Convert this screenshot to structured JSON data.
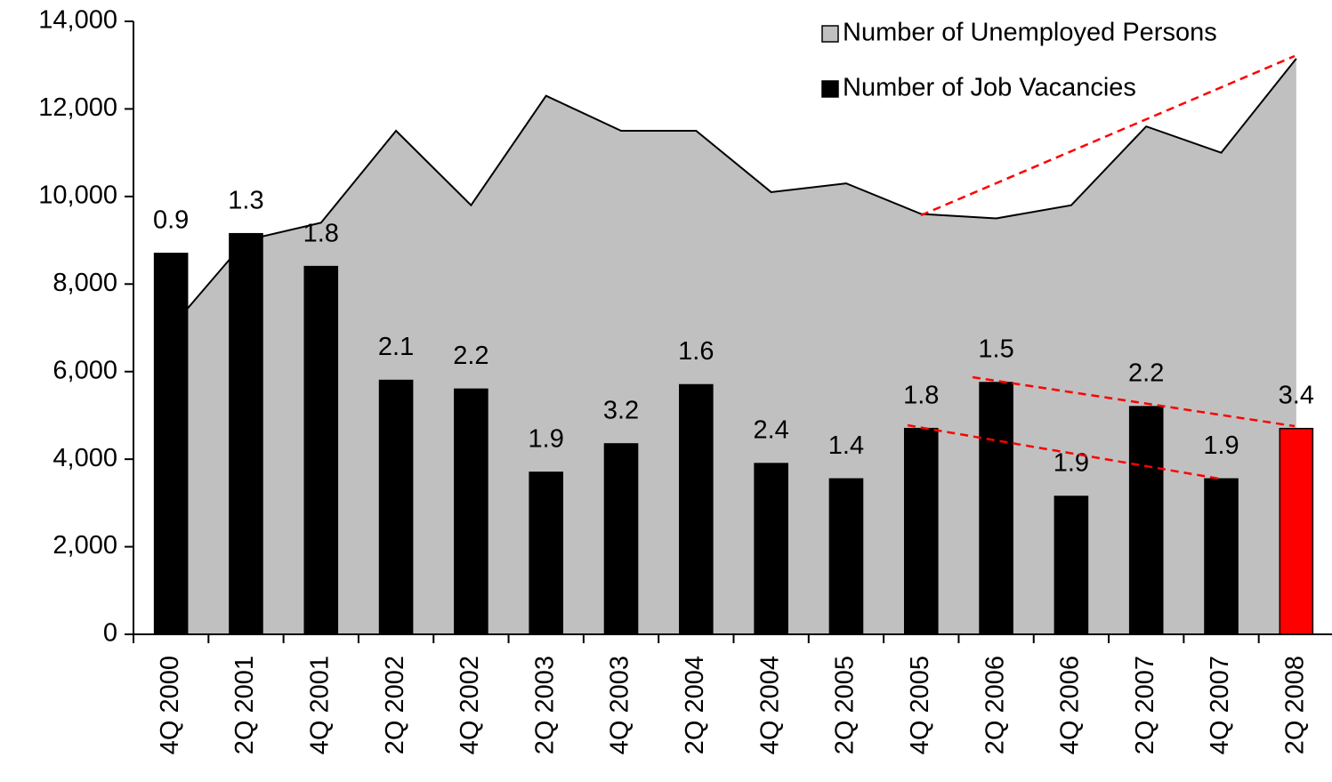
{
  "chart_data": {
    "type": "bar_area",
    "categories": [
      "4Q 2000",
      "2Q 2001",
      "4Q 2001",
      "2Q 2002",
      "4Q 2002",
      "2Q 2003",
      "4Q 2003",
      "2Q 2004",
      "4Q 2004",
      "2Q 2005",
      "4Q 2005",
      "2Q 2006",
      "4Q 2006",
      "2Q 2007",
      "4Q 2007",
      "2Q 2008"
    ],
    "series": [
      {
        "name": "Number of Unemployed Persons",
        "type": "area",
        "color": "#c0c0c0",
        "values": [
          7000,
          9000,
          9400,
          11500,
          9800,
          12300,
          11500,
          11500,
          10100,
          10300,
          9600,
          9500,
          9800,
          11600,
          11000,
          13150
        ]
      },
      {
        "name": "Number of Job Vacancies",
        "type": "bar",
        "color": "#000000",
        "colors": [
          "#000000",
          "#000000",
          "#000000",
          "#000000",
          "#000000",
          "#000000",
          "#000000",
          "#000000",
          "#000000",
          "#000000",
          "#000000",
          "#000000",
          "#000000",
          "#000000",
          "#000000",
          "#ff0000"
        ],
        "values": [
          8700,
          9150,
          8400,
          5800,
          5600,
          3700,
          4350,
          5700,
          3900,
          3550,
          4700,
          5750,
          3150,
          5200,
          3550,
          4700
        ]
      }
    ],
    "annotations": [
      "0.9",
      "1.3",
      "1.8",
      "2.1",
      "2.2",
      "1.9",
      "3.2",
      "1.6",
      "2.4",
      "1.4",
      "1.8",
      "1.5",
      "1.9",
      "2.2",
      "1.9",
      "3.4"
    ],
    "ylim": [
      0,
      14000
    ],
    "yticks": [
      0,
      {
        "value": 2000,
        "label": "2,000"
      },
      {
        "value": 4000,
        "label": "4,000"
      },
      {
        "value": 6000,
        "label": "6,000"
      },
      {
        "value": 8000,
        "label": "8,000"
      },
      {
        "value": 10000,
        "label": "10,000"
      },
      {
        "value": 12000,
        "label": "12,000"
      },
      {
        "value": 14000,
        "label": "14,000"
      }
    ],
    "grid": false,
    "legend": "top-right"
  }
}
